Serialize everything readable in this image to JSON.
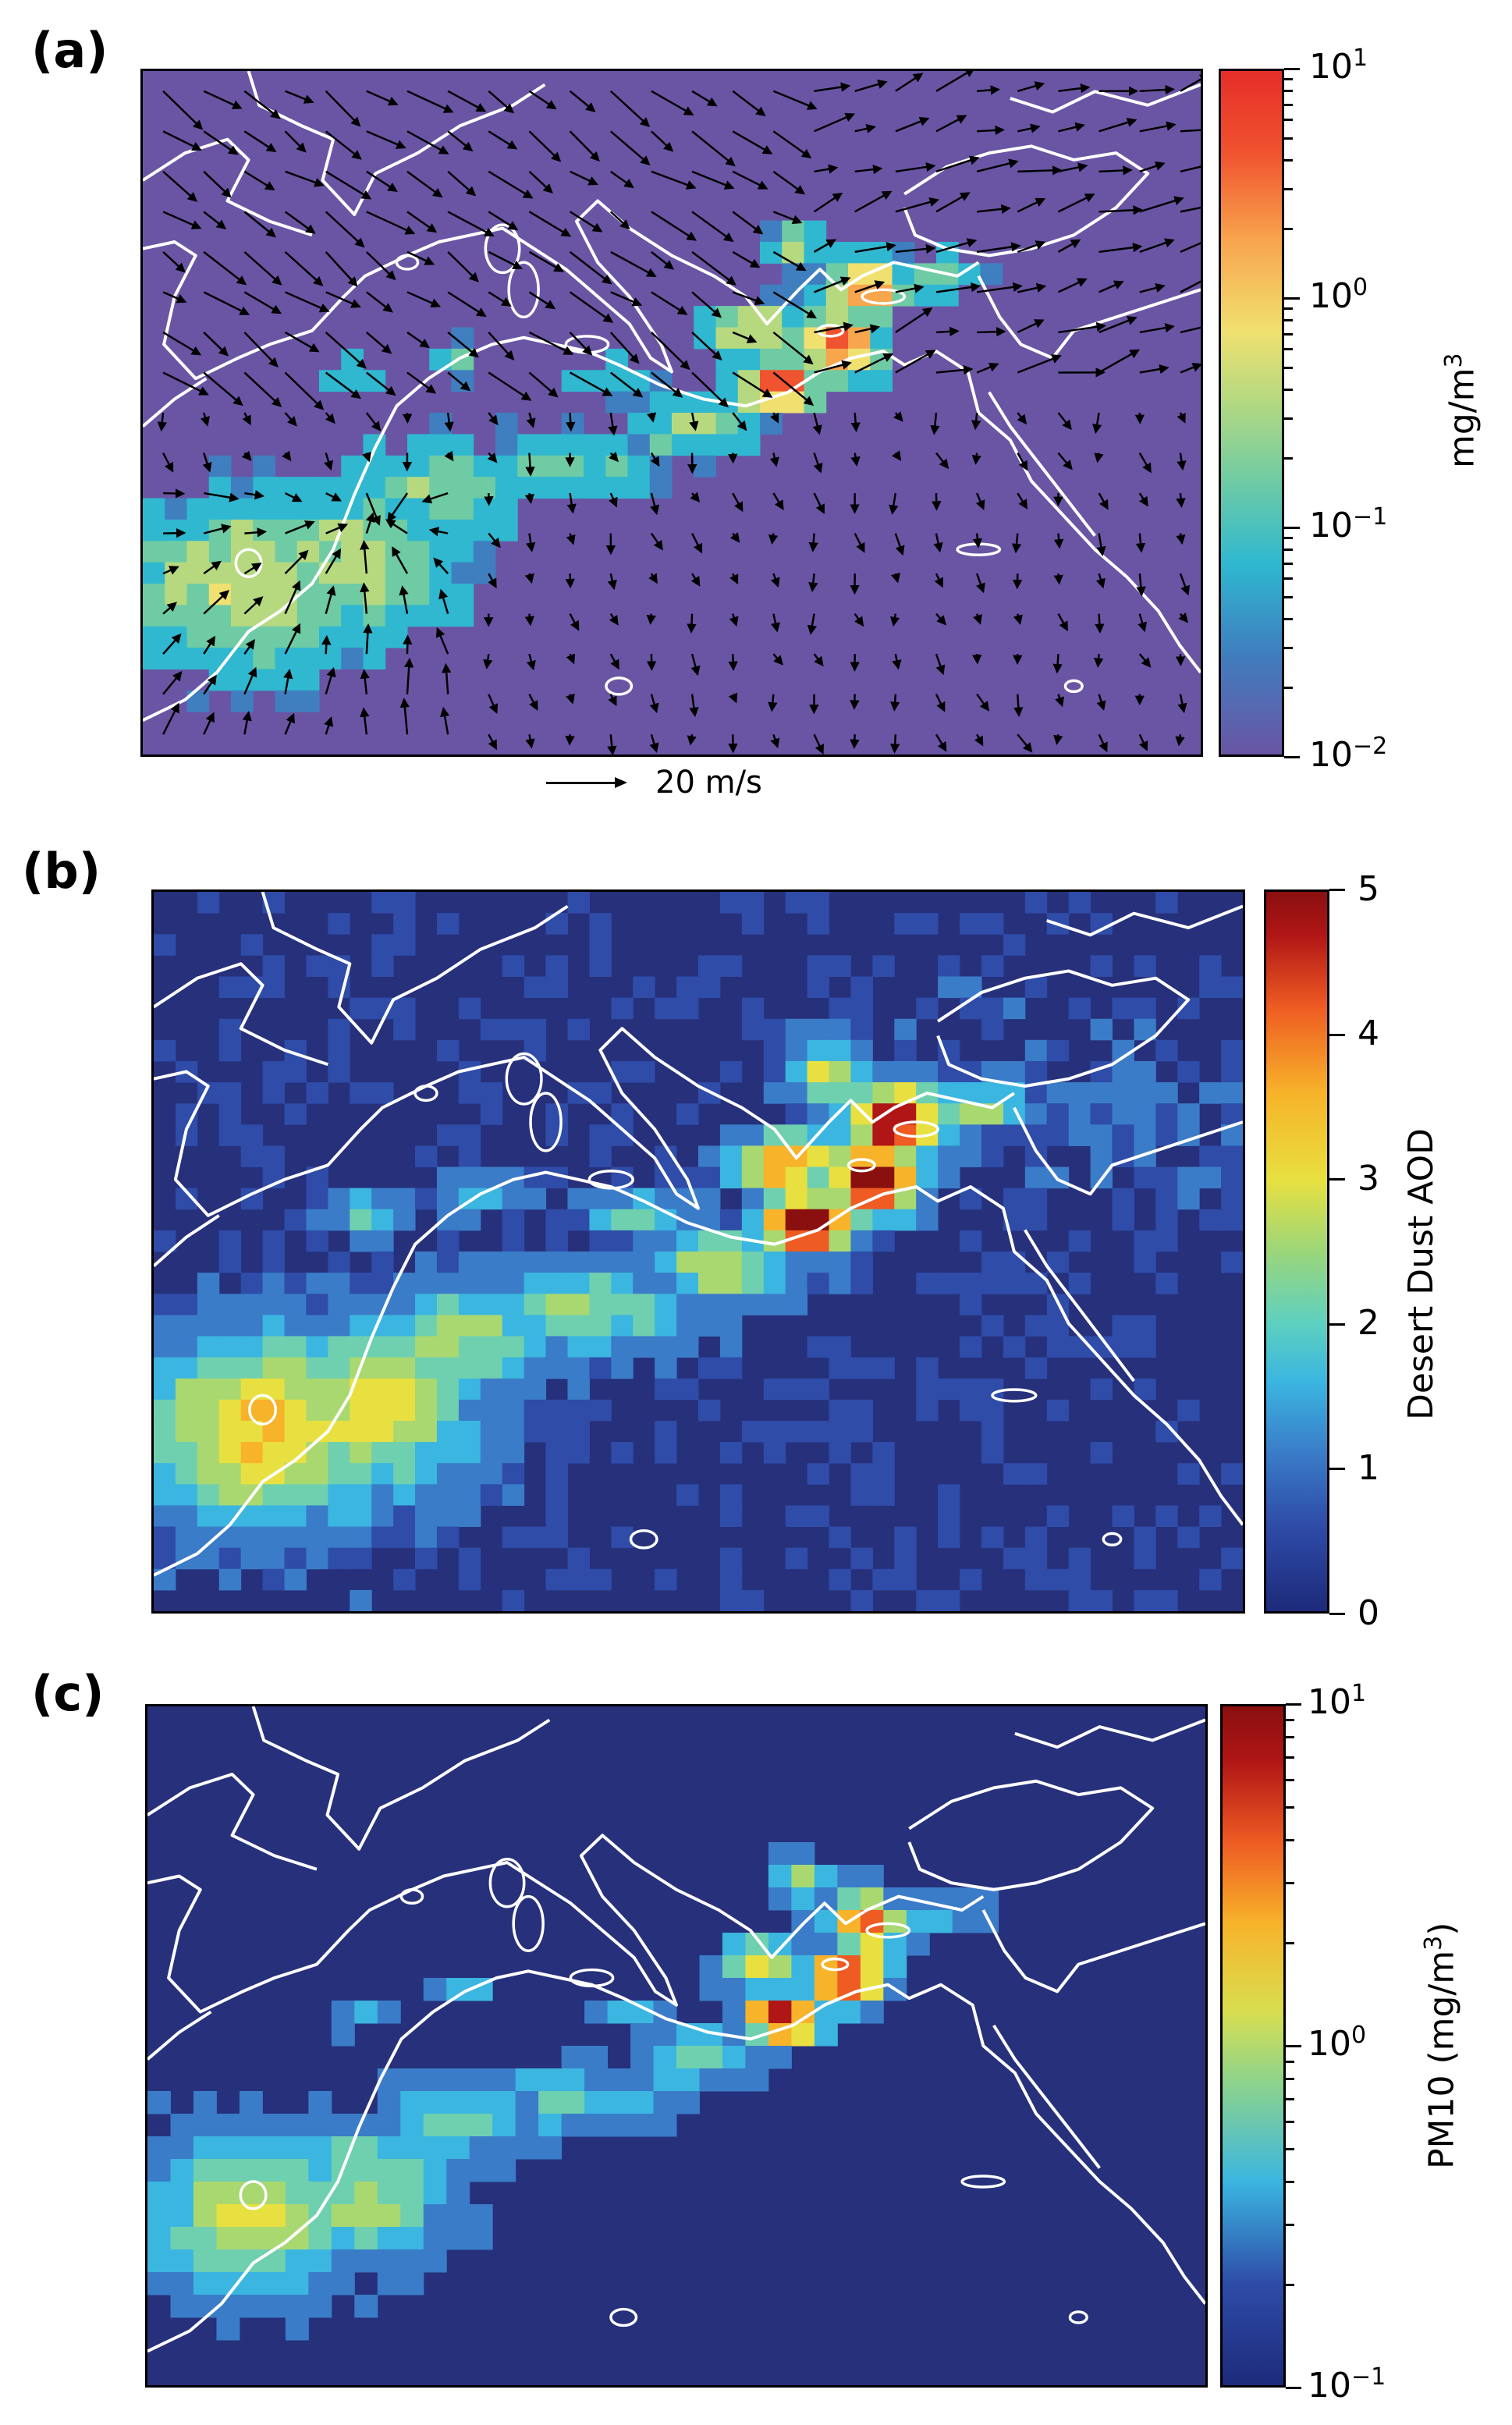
{
  "panels": [
    {
      "label": "(a)",
      "colorbar": {
        "scale": "log",
        "range": [
          0.01,
          10
        ],
        "ticks": [
          {
            "base": "10",
            "exp": "1"
          },
          {
            "base": "10",
            "exp": "0"
          },
          {
            "base": "10",
            "exp": "−1"
          },
          {
            "base": "10",
            "exp": "−2"
          }
        ],
        "title": "mg/m",
        "title_sup": "3",
        "colormap": "spectral"
      },
      "quiver_key": {
        "label": "20 m/s"
      }
    },
    {
      "label": "(b)",
      "colorbar": {
        "scale": "linear",
        "range": [
          0,
          5
        ],
        "ticks": [
          "5",
          "4",
          "3",
          "2",
          "1",
          "0"
        ],
        "title": "Desert Dust AOD",
        "colormap": "jet"
      }
    },
    {
      "label": "(c)",
      "colorbar": {
        "scale": "log",
        "range": [
          0.1,
          10
        ],
        "ticks": [
          {
            "base": "10",
            "exp": "1"
          },
          {
            "base": "10",
            "exp": "0"
          },
          {
            "base": "10",
            "exp": "−1"
          }
        ],
        "title": "PM10 (mg/m",
        "title_sup": "3",
        "title_end": ")",
        "colormap": "jet"
      }
    }
  ],
  "colors": {
    "panel_a_background": "#6a55a4",
    "panel_bc_background": "#27307a",
    "coastline": "#ffffff",
    "arrow": "#000000"
  }
}
